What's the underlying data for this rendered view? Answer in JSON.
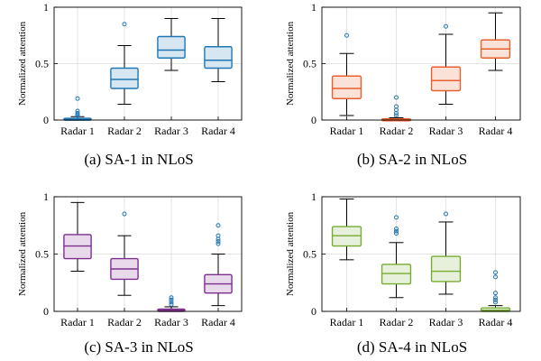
{
  "chart_data": [
    {
      "type": "boxplot",
      "caption": "(a)  SA-1 in NLoS",
      "ylabel": "Normalized attention",
      "ylim": [
        0,
        1
      ],
      "yticks": [
        0,
        0.5,
        1
      ],
      "ytick_labels": [
        "0",
        "0.5",
        "1"
      ],
      "grid": true,
      "color": "#1f77b4",
      "categories": [
        "Radar 1",
        "Radar 2",
        "Radar 3",
        "Radar 4"
      ],
      "boxes": [
        {
          "whisker_low": 0.0,
          "q1": 0.0,
          "median": 0.005,
          "q3": 0.015,
          "whisker_high": 0.03,
          "outliers": [
            0.04,
            0.05,
            0.06,
            0.08,
            0.19
          ]
        },
        {
          "whisker_low": 0.14,
          "q1": 0.28,
          "median": 0.36,
          "q3": 0.46,
          "whisker_high": 0.66,
          "outliers": [
            0.85
          ]
        },
        {
          "whisker_low": 0.44,
          "q1": 0.55,
          "median": 0.62,
          "q3": 0.74,
          "whisker_high": 0.9,
          "outliers": []
        },
        {
          "whisker_low": 0.34,
          "q1": 0.46,
          "median": 0.53,
          "q3": 0.65,
          "whisker_high": 0.9,
          "outliers": []
        }
      ]
    },
    {
      "type": "boxplot",
      "caption": "(b)  SA-2 in NLoS",
      "ylabel": "Normalized attention",
      "ylim": [
        0,
        1
      ],
      "yticks": [
        0,
        0.5,
        1
      ],
      "ytick_labels": [
        "0",
        "0.5",
        "1"
      ],
      "grid": true,
      "color": "#e8602c",
      "categories": [
        "Radar 1",
        "Radar 2",
        "Radar 3",
        "Radar 4"
      ],
      "boxes": [
        {
          "whisker_low": 0.04,
          "q1": 0.19,
          "median": 0.28,
          "q3": 0.39,
          "whisker_high": 0.59,
          "outliers": [
            0.75
          ]
        },
        {
          "whisker_low": 0.0,
          "q1": 0.0,
          "median": 0.005,
          "q3": 0.01,
          "whisker_high": 0.02,
          "outliers": [
            0.04,
            0.06,
            0.09,
            0.12,
            0.2
          ]
        },
        {
          "whisker_low": 0.14,
          "q1": 0.26,
          "median": 0.35,
          "q3": 0.47,
          "whisker_high": 0.76,
          "outliers": [
            0.83
          ]
        },
        {
          "whisker_low": 0.44,
          "q1": 0.55,
          "median": 0.63,
          "q3": 0.71,
          "whisker_high": 0.95,
          "outliers": []
        }
      ]
    },
    {
      "type": "boxplot",
      "caption": "(c)  SA-3 in NLoS",
      "ylabel": "Normalized attention",
      "ylim": [
        0,
        1
      ],
      "yticks": [
        0,
        0.5,
        1
      ],
      "ytick_labels": [
        "0",
        "0.5",
        "1"
      ],
      "grid": true,
      "color": "#7e2f8e",
      "categories": [
        "Radar 1",
        "Radar 2",
        "Radar 3",
        "Radar 4"
      ],
      "boxes": [
        {
          "whisker_low": 0.35,
          "q1": 0.46,
          "median": 0.57,
          "q3": 0.67,
          "whisker_high": 0.95,
          "outliers": []
        },
        {
          "whisker_low": 0.14,
          "q1": 0.28,
          "median": 0.37,
          "q3": 0.46,
          "whisker_high": 0.66,
          "outliers": [
            0.85
          ]
        },
        {
          "whisker_low": 0.0,
          "q1": 0.0,
          "median": 0.01,
          "q3": 0.02,
          "whisker_high": 0.04,
          "outliers": [
            0.06,
            0.08,
            0.1,
            0.12
          ]
        },
        {
          "whisker_low": 0.05,
          "q1": 0.16,
          "median": 0.24,
          "q3": 0.32,
          "whisker_high": 0.5,
          "outliers": [
            0.59,
            0.61,
            0.63,
            0.66,
            0.75
          ]
        }
      ]
    },
    {
      "type": "boxplot",
      "caption": "(d)  SA-4 in NLoS",
      "ylabel": "Normalized attention",
      "ylim": [
        0,
        1
      ],
      "yticks": [
        0,
        0.5,
        1
      ],
      "ytick_labels": [
        "0",
        "0.5",
        "1"
      ],
      "grid": true,
      "color": "#77ac30",
      "categories": [
        "Radar 1",
        "Radar 2",
        "Radar 3",
        "Radar 4"
      ],
      "boxes": [
        {
          "whisker_low": 0.45,
          "q1": 0.57,
          "median": 0.66,
          "q3": 0.74,
          "whisker_high": 0.98,
          "outliers": []
        },
        {
          "whisker_low": 0.12,
          "q1": 0.24,
          "median": 0.33,
          "q3": 0.41,
          "whisker_high": 0.6,
          "outliers": [
            0.68,
            0.7,
            0.72,
            0.82
          ]
        },
        {
          "whisker_low": 0.15,
          "q1": 0.26,
          "median": 0.35,
          "q3": 0.48,
          "whisker_high": 0.78,
          "outliers": [
            0.85
          ]
        },
        {
          "whisker_low": 0.0,
          "q1": 0.0,
          "median": 0.01,
          "q3": 0.03,
          "whisker_high": 0.05,
          "outliers": [
            0.08,
            0.1,
            0.12,
            0.16,
            0.3,
            0.34
          ]
        }
      ]
    }
  ]
}
